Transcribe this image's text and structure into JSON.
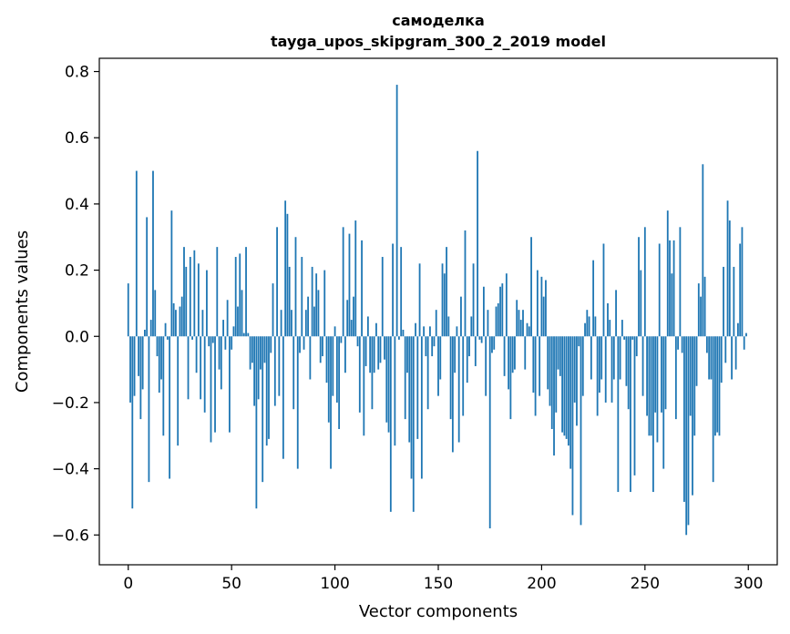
{
  "chart_data": {
    "type": "bar",
    "title": "самоделка",
    "subtitle": "tayga_upos_skipgram_300_2_2019 model",
    "xlabel": "Vector components",
    "ylabel": "Components values",
    "xlim": [
      -14,
      314
    ],
    "ylim": [
      -0.69,
      0.84
    ],
    "xticks": [
      0,
      50,
      100,
      150,
      200,
      250,
      300
    ],
    "yticks": [
      -0.6,
      -0.4,
      -0.2,
      0.0,
      0.2,
      0.4,
      0.6,
      0.8
    ],
    "xtick_labels": [
      "0",
      "50",
      "100",
      "150",
      "200",
      "250",
      "300"
    ],
    "ytick_labels": [
      "−0.6",
      "−0.4",
      "−0.2",
      "0.0",
      "0.2",
      "0.4",
      "0.6",
      "0.8"
    ],
    "grid": false,
    "legend": "none",
    "bar_color": "#1f77b4",
    "values": [
      0.16,
      -0.2,
      -0.52,
      -0.18,
      0.5,
      -0.12,
      -0.25,
      -0.16,
      0.02,
      0.36,
      -0.44,
      0.05,
      0.5,
      0.14,
      -0.06,
      -0.17,
      -0.13,
      -0.3,
      0.04,
      -0.01,
      -0.43,
      0.38,
      0.1,
      0.08,
      -0.33,
      0.09,
      0.12,
      0.27,
      0.21,
      -0.19,
      0.24,
      -0.01,
      0.26,
      -0.11,
      0.22,
      -0.19,
      0.08,
      -0.23,
      0.2,
      -0.03,
      -0.32,
      -0.02,
      -0.29,
      0.27,
      -0.1,
      -0.16,
      0.05,
      -0.04,
      0.11,
      -0.29,
      -0.04,
      0.03,
      0.24,
      0.09,
      0.25,
      0.14,
      0.01,
      0.27,
      0.01,
      -0.1,
      -0.08,
      -0.21,
      -0.52,
      -0.19,
      -0.1,
      -0.44,
      -0.08,
      -0.33,
      -0.31,
      -0.05,
      0.16,
      -0.21,
      0.33,
      -0.18,
      0.08,
      -0.37,
      0.41,
      0.37,
      0.21,
      0.08,
      -0.22,
      0.3,
      -0.4,
      -0.05,
      0.24,
      -0.04,
      0.08,
      0.12,
      -0.13,
      0.21,
      0.09,
      0.19,
      0.14,
      -0.08,
      -0.06,
      0.2,
      -0.14,
      -0.26,
      -0.4,
      -0.18,
      0.03,
      -0.2,
      -0.28,
      -0.02,
      0.33,
      -0.11,
      0.11,
      0.31,
      0.05,
      0.12,
      0.35,
      -0.03,
      -0.23,
      0.29,
      -0.3,
      -0.09,
      0.06,
      -0.11,
      -0.22,
      -0.11,
      0.04,
      -0.1,
      -0.08,
      0.24,
      -0.07,
      -0.26,
      -0.29,
      -0.53,
      0.28,
      -0.33,
      0.76,
      -0.01,
      0.27,
      0.02,
      -0.25,
      -0.11,
      -0.32,
      -0.43,
      -0.53,
      0.04,
      -0.31,
      0.22,
      -0.43,
      0.03,
      -0.06,
      -0.22,
      0.03,
      -0.06,
      -0.03,
      0.08,
      -0.18,
      -0.13,
      0.22,
      0.19,
      0.27,
      0.06,
      -0.25,
      -0.35,
      -0.11,
      0.03,
      -0.32,
      0.12,
      -0.24,
      0.32,
      -0.14,
      -0.06,
      0.06,
      0.22,
      -0.09,
      0.56,
      -0.01,
      -0.02,
      0.15,
      -0.18,
      0.08,
      -0.58,
      -0.05,
      -0.04,
      0.09,
      0.1,
      0.15,
      0.16,
      -0.12,
      0.19,
      -0.16,
      -0.25,
      -0.11,
      -0.1,
      0.11,
      0.08,
      0.05,
      0.08,
      -0.1,
      0.04,
      0.03,
      0.3,
      -0.17,
      -0.24,
      0.2,
      -0.18,
      0.18,
      0.12,
      0.17,
      -0.16,
      -0.21,
      -0.28,
      -0.36,
      -0.23,
      -0.1,
      -0.12,
      -0.29,
      -0.3,
      -0.31,
      -0.33,
      -0.4,
      -0.54,
      -0.2,
      -0.27,
      -0.03,
      -0.57,
      -0.18,
      0.04,
      0.08,
      0.06,
      -0.13,
      0.23,
      0.06,
      -0.24,
      -0.17,
      -0.13,
      0.28,
      -0.2,
      0.1,
      0.05,
      -0.2,
      -0.13,
      0.14,
      -0.47,
      -0.13,
      0.05,
      -0.01,
      -0.15,
      -0.22,
      -0.47,
      -0.01,
      -0.42,
      -0.06,
      0.3,
      0.2,
      -0.18,
      0.33,
      -0.24,
      -0.3,
      -0.3,
      -0.47,
      -0.23,
      -0.32,
      0.28,
      -0.23,
      -0.4,
      -0.22,
      0.38,
      0.29,
      0.19,
      0.29,
      -0.25,
      -0.04,
      0.33,
      -0.05,
      -0.5,
      -0.6,
      -0.57,
      -0.24,
      -0.48,
      -0.3,
      -0.15,
      0.16,
      0.12,
      0.52,
      0.18,
      -0.05,
      -0.13,
      -0.13,
      -0.44,
      -0.3,
      -0.29,
      -0.3,
      -0.14,
      0.21,
      -0.08,
      0.41,
      0.35,
      -0.13,
      0.21,
      -0.1,
      0.04,
      0.28,
      0.33,
      -0.04,
      0.01
    ]
  }
}
